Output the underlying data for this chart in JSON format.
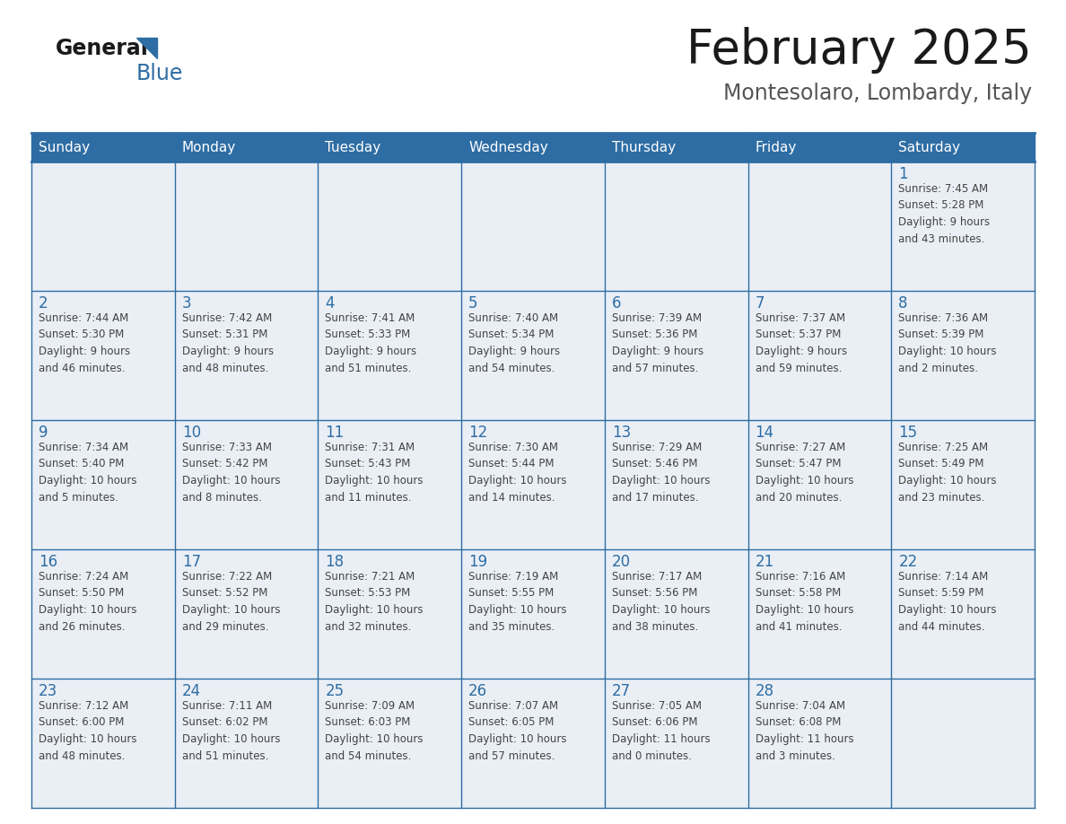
{
  "title": "February 2025",
  "subtitle": "Montesolaro, Lombardy, Italy",
  "header_color": "#2E6DA4",
  "header_text_color": "#FFFFFF",
  "cell_bg_odd": "#EAEFF5",
  "cell_bg_even": "#FFFFFF",
  "border_color": "#2E6DA4",
  "text_color": "#444444",
  "day_number_color": "#2E6DA4",
  "days_of_week": [
    "Sunday",
    "Monday",
    "Tuesday",
    "Wednesday",
    "Thursday",
    "Friday",
    "Saturday"
  ],
  "logo_general_color": "#1a1a1a",
  "logo_blue_color": "#2E6DA4",
  "title_color": "#1a1a1a",
  "subtitle_color": "#555555",
  "weeks": [
    [
      {
        "day": null,
        "text": ""
      },
      {
        "day": null,
        "text": ""
      },
      {
        "day": null,
        "text": ""
      },
      {
        "day": null,
        "text": ""
      },
      {
        "day": null,
        "text": ""
      },
      {
        "day": null,
        "text": ""
      },
      {
        "day": 1,
        "text": "Sunrise: 7:45 AM\nSunset: 5:28 PM\nDaylight: 9 hours\nand 43 minutes."
      }
    ],
    [
      {
        "day": 2,
        "text": "Sunrise: 7:44 AM\nSunset: 5:30 PM\nDaylight: 9 hours\nand 46 minutes."
      },
      {
        "day": 3,
        "text": "Sunrise: 7:42 AM\nSunset: 5:31 PM\nDaylight: 9 hours\nand 48 minutes."
      },
      {
        "day": 4,
        "text": "Sunrise: 7:41 AM\nSunset: 5:33 PM\nDaylight: 9 hours\nand 51 minutes."
      },
      {
        "day": 5,
        "text": "Sunrise: 7:40 AM\nSunset: 5:34 PM\nDaylight: 9 hours\nand 54 minutes."
      },
      {
        "day": 6,
        "text": "Sunrise: 7:39 AM\nSunset: 5:36 PM\nDaylight: 9 hours\nand 57 minutes."
      },
      {
        "day": 7,
        "text": "Sunrise: 7:37 AM\nSunset: 5:37 PM\nDaylight: 9 hours\nand 59 minutes."
      },
      {
        "day": 8,
        "text": "Sunrise: 7:36 AM\nSunset: 5:39 PM\nDaylight: 10 hours\nand 2 minutes."
      }
    ],
    [
      {
        "day": 9,
        "text": "Sunrise: 7:34 AM\nSunset: 5:40 PM\nDaylight: 10 hours\nand 5 minutes."
      },
      {
        "day": 10,
        "text": "Sunrise: 7:33 AM\nSunset: 5:42 PM\nDaylight: 10 hours\nand 8 minutes."
      },
      {
        "day": 11,
        "text": "Sunrise: 7:31 AM\nSunset: 5:43 PM\nDaylight: 10 hours\nand 11 minutes."
      },
      {
        "day": 12,
        "text": "Sunrise: 7:30 AM\nSunset: 5:44 PM\nDaylight: 10 hours\nand 14 minutes."
      },
      {
        "day": 13,
        "text": "Sunrise: 7:29 AM\nSunset: 5:46 PM\nDaylight: 10 hours\nand 17 minutes."
      },
      {
        "day": 14,
        "text": "Sunrise: 7:27 AM\nSunset: 5:47 PM\nDaylight: 10 hours\nand 20 minutes."
      },
      {
        "day": 15,
        "text": "Sunrise: 7:25 AM\nSunset: 5:49 PM\nDaylight: 10 hours\nand 23 minutes."
      }
    ],
    [
      {
        "day": 16,
        "text": "Sunrise: 7:24 AM\nSunset: 5:50 PM\nDaylight: 10 hours\nand 26 minutes."
      },
      {
        "day": 17,
        "text": "Sunrise: 7:22 AM\nSunset: 5:52 PM\nDaylight: 10 hours\nand 29 minutes."
      },
      {
        "day": 18,
        "text": "Sunrise: 7:21 AM\nSunset: 5:53 PM\nDaylight: 10 hours\nand 32 minutes."
      },
      {
        "day": 19,
        "text": "Sunrise: 7:19 AM\nSunset: 5:55 PM\nDaylight: 10 hours\nand 35 minutes."
      },
      {
        "day": 20,
        "text": "Sunrise: 7:17 AM\nSunset: 5:56 PM\nDaylight: 10 hours\nand 38 minutes."
      },
      {
        "day": 21,
        "text": "Sunrise: 7:16 AM\nSunset: 5:58 PM\nDaylight: 10 hours\nand 41 minutes."
      },
      {
        "day": 22,
        "text": "Sunrise: 7:14 AM\nSunset: 5:59 PM\nDaylight: 10 hours\nand 44 minutes."
      }
    ],
    [
      {
        "day": 23,
        "text": "Sunrise: 7:12 AM\nSunset: 6:00 PM\nDaylight: 10 hours\nand 48 minutes."
      },
      {
        "day": 24,
        "text": "Sunrise: 7:11 AM\nSunset: 6:02 PM\nDaylight: 10 hours\nand 51 minutes."
      },
      {
        "day": 25,
        "text": "Sunrise: 7:09 AM\nSunset: 6:03 PM\nDaylight: 10 hours\nand 54 minutes."
      },
      {
        "day": 26,
        "text": "Sunrise: 7:07 AM\nSunset: 6:05 PM\nDaylight: 10 hours\nand 57 minutes."
      },
      {
        "day": 27,
        "text": "Sunrise: 7:05 AM\nSunset: 6:06 PM\nDaylight: 11 hours\nand 0 minutes."
      },
      {
        "day": 28,
        "text": "Sunrise: 7:04 AM\nSunset: 6:08 PM\nDaylight: 11 hours\nand 3 minutes."
      },
      {
        "day": null,
        "text": ""
      }
    ]
  ]
}
